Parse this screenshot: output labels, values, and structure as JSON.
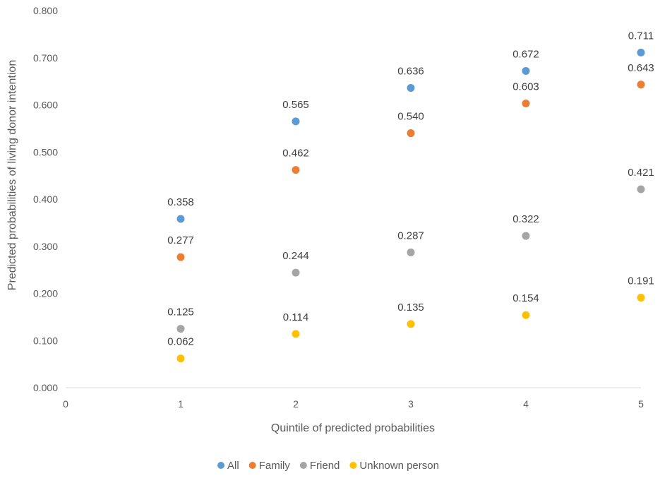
{
  "chart_data": {
    "type": "scatter",
    "title": "",
    "xlabel": "Quintile of predicted probabilities",
    "ylabel": "Predicted probabilities of living donor intention",
    "xlim": [
      0,
      5
    ],
    "ylim": [
      0,
      0.8
    ],
    "x_ticks": [
      "0",
      "1",
      "2",
      "3",
      "4",
      "5"
    ],
    "y_ticks": [
      "0.000",
      "0.100",
      "0.200",
      "0.300",
      "0.400",
      "0.500",
      "0.600",
      "0.700",
      "0.800"
    ],
    "legend_position": "bottom",
    "grid": false,
    "series": [
      {
        "name": "All",
        "color": "#5b9bd5",
        "x": [
          1,
          2,
          3,
          4,
          5
        ],
        "values": [
          0.358,
          0.565,
          0.636,
          0.672,
          0.711
        ],
        "labels": [
          "0.358",
          "0.565",
          "0.636",
          "0.672",
          "0.711"
        ]
      },
      {
        "name": "Family",
        "color": "#ed7d31",
        "x": [
          1,
          2,
          3,
          4,
          5
        ],
        "values": [
          0.277,
          0.462,
          0.54,
          0.603,
          0.643
        ],
        "labels": [
          "0.277",
          "0.462",
          "0.540",
          "0.603",
          "0.643"
        ]
      },
      {
        "name": "Friend",
        "color": "#a5a5a5",
        "x": [
          1,
          2,
          3,
          4,
          5
        ],
        "values": [
          0.125,
          0.244,
          0.287,
          0.322,
          0.421
        ],
        "labels": [
          "0.125",
          "0.244",
          "0.287",
          "0.322",
          "0.421"
        ]
      },
      {
        "name": "Unknown person",
        "color": "#ffc000",
        "x": [
          1,
          2,
          3,
          4,
          5
        ],
        "values": [
          0.062,
          0.114,
          0.135,
          0.154,
          0.191
        ],
        "labels": [
          "0.062",
          "0.114",
          "0.135",
          "0.154",
          "0.191"
        ]
      }
    ]
  }
}
